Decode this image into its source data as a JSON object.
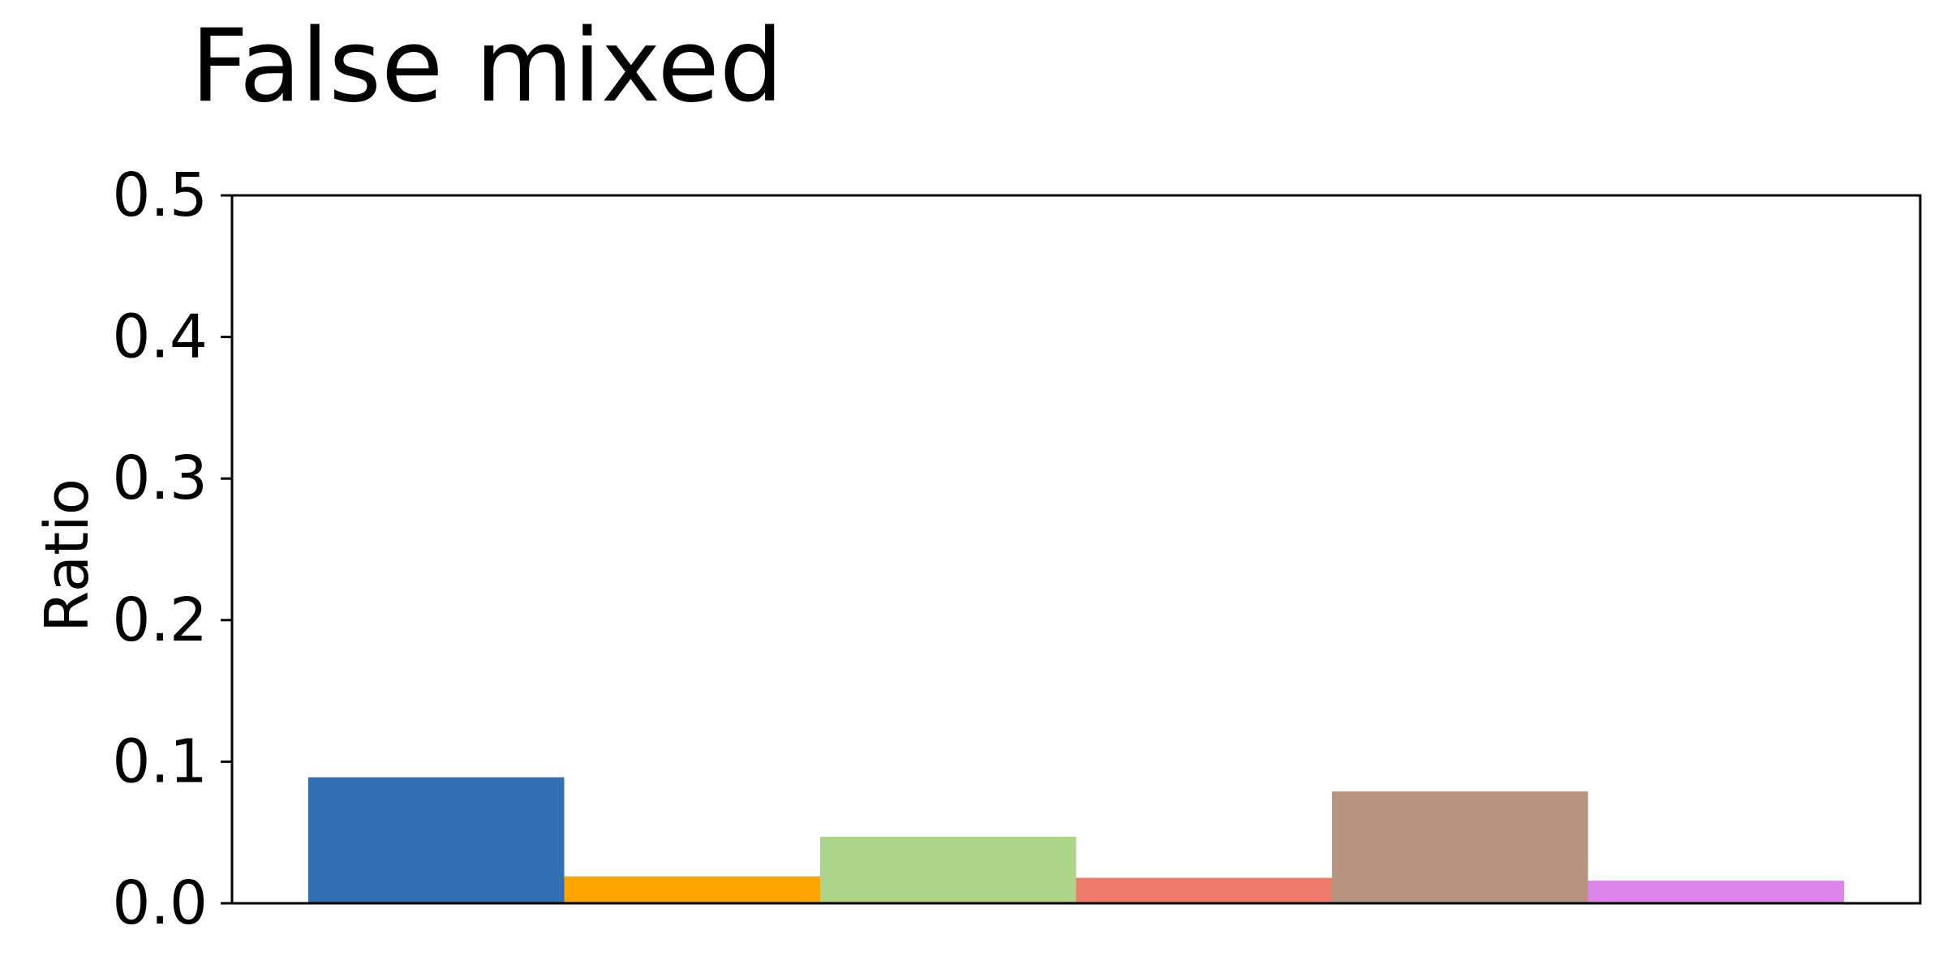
{
  "chart_data": {
    "type": "bar",
    "title": "False mixed",
    "xlabel": "",
    "ylabel": "Ratio",
    "ylim": [
      0,
      0.5
    ],
    "yticks": [
      "0.0",
      "0.1",
      "0.2",
      "0.3",
      "0.4",
      "0.5"
    ],
    "grid": false,
    "series": [
      {
        "values": [
          0.089
        ],
        "color": "#3070b3"
      },
      {
        "values": [
          0.019
        ],
        "color": "#fea500"
      },
      {
        "values": [
          0.047
        ],
        "color": "#add58a"
      },
      {
        "values": [
          0.018
        ],
        "color": "#ef7a6e"
      },
      {
        "values": [
          0.079
        ],
        "color": "#b89480"
      },
      {
        "values": [
          0.016
        ],
        "color": "#dc85e8"
      }
    ]
  }
}
